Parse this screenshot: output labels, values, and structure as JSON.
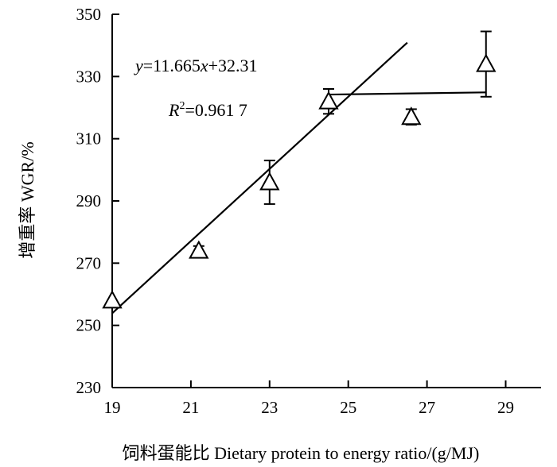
{
  "chart_data": {
    "type": "scatter",
    "xlabel": "饲料蛋能比 Dietary protein to energy ratio/(g/MJ)",
    "ylabel": "增重率 WGR/%",
    "xlim": [
      19,
      29.9
    ],
    "ylim": [
      230,
      350
    ],
    "x_ticks": [
      19,
      21,
      23,
      25,
      27,
      29
    ],
    "y_ticks": [
      230,
      250,
      270,
      290,
      310,
      330,
      350
    ],
    "grid": false,
    "points": [
      {
        "x": 19.0,
        "y": 258,
        "err": 0
      },
      {
        "x": 21.2,
        "y": 274,
        "err": 1.5
      },
      {
        "x": 23.0,
        "y": 296,
        "err": 7
      },
      {
        "x": 24.5,
        "y": 322,
        "err": 4
      },
      {
        "x": 26.6,
        "y": 317,
        "err": 2.5
      },
      {
        "x": 28.5,
        "y": 334,
        "err": 10.5
      }
    ],
    "fits": [
      {
        "x": [
          19.0,
          26.5
        ],
        "y": [
          253.9,
          340.9
        ]
      },
      {
        "x": [
          24.5,
          28.5
        ],
        "y": [
          324.2,
          324.9
        ]
      }
    ],
    "equation": {
      "y_var": "y",
      "eq_rest": "=11.665",
      "x_var": "x",
      "eq_tail": "+32.31"
    },
    "r_squared": {
      "r": "R",
      "sup": "2",
      "val": "=0.961 7"
    }
  }
}
